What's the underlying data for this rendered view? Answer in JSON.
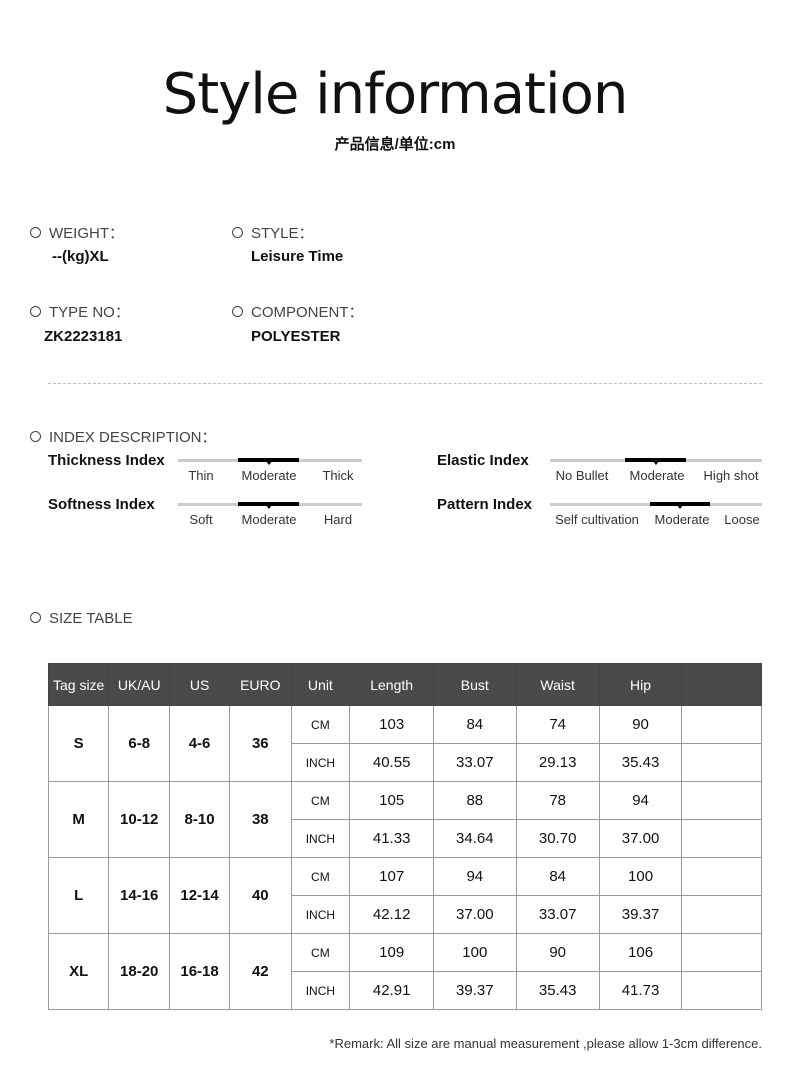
{
  "header": {
    "title": "Style information",
    "subtitle": "产品信息/单位:cm"
  },
  "info": {
    "weight_label": "WEIGHT：",
    "weight_value": "--(kg)XL",
    "style_label": "STYLE：",
    "style_value": "Leisure Time",
    "type_label": "TYPE NO：",
    "type_value": "ZK2223181",
    "component_label": "COMPONENT：",
    "component_value": "POLYESTER"
  },
  "index": {
    "label": "INDEX DESCRIPTION：",
    "items": [
      {
        "name": "Thickness Index",
        "options": [
          "Thin",
          "Moderate",
          "Thick"
        ],
        "selected": "Moderate"
      },
      {
        "name": "Softness Index",
        "options": [
          "Soft",
          "Moderate",
          "Hard"
        ],
        "selected": "Moderate"
      },
      {
        "name": "Elastic Index",
        "options": [
          "No Bullet",
          "Moderate",
          "High shot"
        ],
        "selected": "Moderate"
      },
      {
        "name": "Pattern Index",
        "options": [
          "Self cultivation",
          "Moderate",
          "Loose"
        ],
        "selected": "Moderate"
      }
    ]
  },
  "size_table": {
    "label": "SIZE TABLE",
    "headers": [
      "Tag size",
      "UK/AU",
      "US",
      "EURO",
      "Unit",
      "Length",
      "Bust",
      "Waist",
      "Hip",
      ""
    ],
    "rows": [
      {
        "tag": "S",
        "uk": "6-8",
        "us": "4-6",
        "euro": "36",
        "cm": [
          "CM",
          "103",
          "84",
          "74",
          "90"
        ],
        "inch": [
          "INCH",
          "40.55",
          "33.07",
          "29.13",
          "35.43"
        ]
      },
      {
        "tag": "M",
        "uk": "10-12",
        "us": "8-10",
        "euro": "38",
        "cm": [
          "CM",
          "105",
          "88",
          "78",
          "94"
        ],
        "inch": [
          "INCH",
          "41.33",
          "34.64",
          "30.70",
          "37.00"
        ]
      },
      {
        "tag": "L",
        "uk": "14-16",
        "us": "12-14",
        "euro": "40",
        "cm": [
          "CM",
          "107",
          "94",
          "84",
          "100"
        ],
        "inch": [
          "INCH",
          "42.12",
          "37.00",
          "33.07",
          "39.37"
        ]
      },
      {
        "tag": "XL",
        "uk": "18-20",
        "us": "16-18",
        "euro": "42",
        "cm": [
          "CM",
          "109",
          "100",
          "90",
          "106"
        ],
        "inch": [
          "INCH",
          "42.91",
          "39.37",
          "35.43",
          "41.73"
        ]
      }
    ]
  },
  "remark": "*Remark: All size are manual measurement ,please allow 1-3cm difference."
}
